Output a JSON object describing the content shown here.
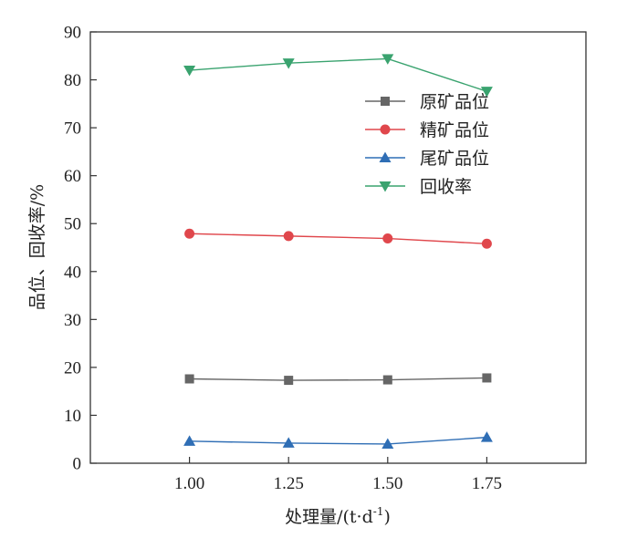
{
  "chart_data": {
    "type": "line",
    "title": "",
    "xlabel": "处理量/(t·d⁻¹)",
    "xlabel_parts": {
      "main": "处理量/(t·d",
      "sup": "-1",
      "close": ")"
    },
    "ylabel": "品位、回收率/%",
    "x": [
      1.0,
      1.25,
      1.5,
      1.75
    ],
    "x_tick_labels": [
      "1.00",
      "1.25",
      "1.50",
      "1.75"
    ],
    "xlim": [
      0.75,
      2.0
    ],
    "ylim": [
      0,
      90
    ],
    "y_ticks": [
      0,
      10,
      20,
      30,
      40,
      50,
      60,
      70,
      80,
      90
    ],
    "grid": false,
    "legend_position": "upper-right",
    "series": [
      {
        "name": "原矿品位",
        "values": [
          17.6,
          17.3,
          17.4,
          17.8
        ],
        "color": "#666666",
        "marker": "square"
      },
      {
        "name": "精矿品位",
        "values": [
          47.9,
          47.4,
          46.9,
          45.8
        ],
        "color": "#e0474c",
        "marker": "circle"
      },
      {
        "name": "尾矿品位",
        "values": [
          4.6,
          4.2,
          4.0,
          5.4
        ],
        "color": "#2f6eb5",
        "marker": "triangle-up"
      },
      {
        "name": "回收率",
        "values": [
          82.0,
          83.5,
          84.4,
          77.6
        ],
        "color": "#3aa36f",
        "marker": "triangle-down"
      }
    ]
  }
}
